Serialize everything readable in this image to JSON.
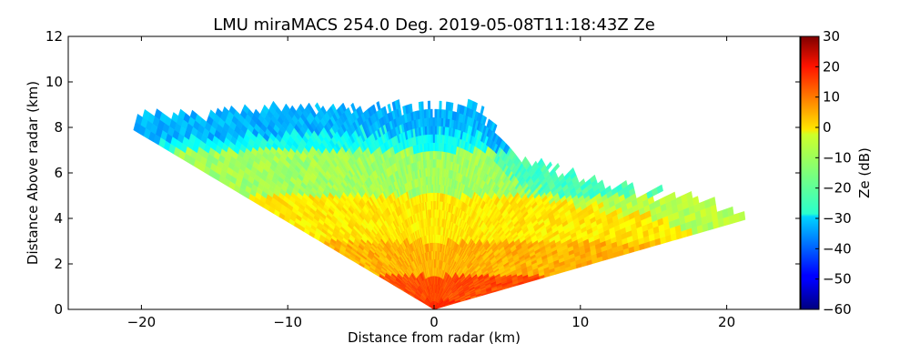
{
  "chart_data": {
    "type": "heatmap",
    "title": "LMU miraMACS 254.0 Deg. 2019-05-08T11:18:43Z  Ze",
    "xlabel": "Distance from radar (km)",
    "ylabel": "Distance Above radar  (km)",
    "xlim": [
      -25,
      25
    ],
    "ylim": [
      0,
      12
    ],
    "x_ticks": [
      -20,
      -10,
      0,
      10,
      20
    ],
    "x_tick_labels": [
      "−20",
      "−10",
      "0",
      "10",
      "20"
    ],
    "y_ticks": [
      0,
      2,
      4,
      6,
      8,
      10,
      12
    ],
    "y_tick_labels": [
      "0",
      "2",
      "4",
      "6",
      "8",
      "10",
      "12"
    ],
    "colorbar": {
      "label": "Ze (dB)",
      "range": [
        -60,
        30
      ],
      "ticks": [
        30,
        20,
        10,
        0,
        -10,
        -20,
        -30,
        -40,
        -50,
        -60
      ],
      "tick_labels": [
        "30",
        "20",
        "10",
        "0",
        "−10",
        "−20",
        "−30",
        "−40",
        "−50",
        "−60"
      ],
      "colormap": "jet"
    },
    "scan": {
      "azimuth_deg": 254.0,
      "elevation_min_deg": 10.5,
      "elevation_max_deg": 159,
      "max_range_km": 22,
      "cloud_top_km": [
        8.4,
        8.9,
        8.9,
        6.5,
        4.1
      ],
      "cloud_top_x_km": [
        -20,
        -7,
        3,
        6,
        22
      ],
      "ze_bands": [
        {
          "height_km": [
            0,
            0.4
          ],
          "ze_db": 15
        },
        {
          "height_km": [
            0.4,
            1.5
          ],
          "ze_db": 12
        },
        {
          "height_km": [
            1.5,
            3
          ],
          "ze_db": 3
        },
        {
          "height_km": [
            3,
            5
          ],
          "ze_db": -2
        },
        {
          "height_km": [
            5,
            7
          ],
          "ze_db": -12
        },
        {
          "height_km": [
            7,
            9
          ],
          "ze_db": -25
        }
      ]
    },
    "grid": false,
    "legend": "none"
  }
}
